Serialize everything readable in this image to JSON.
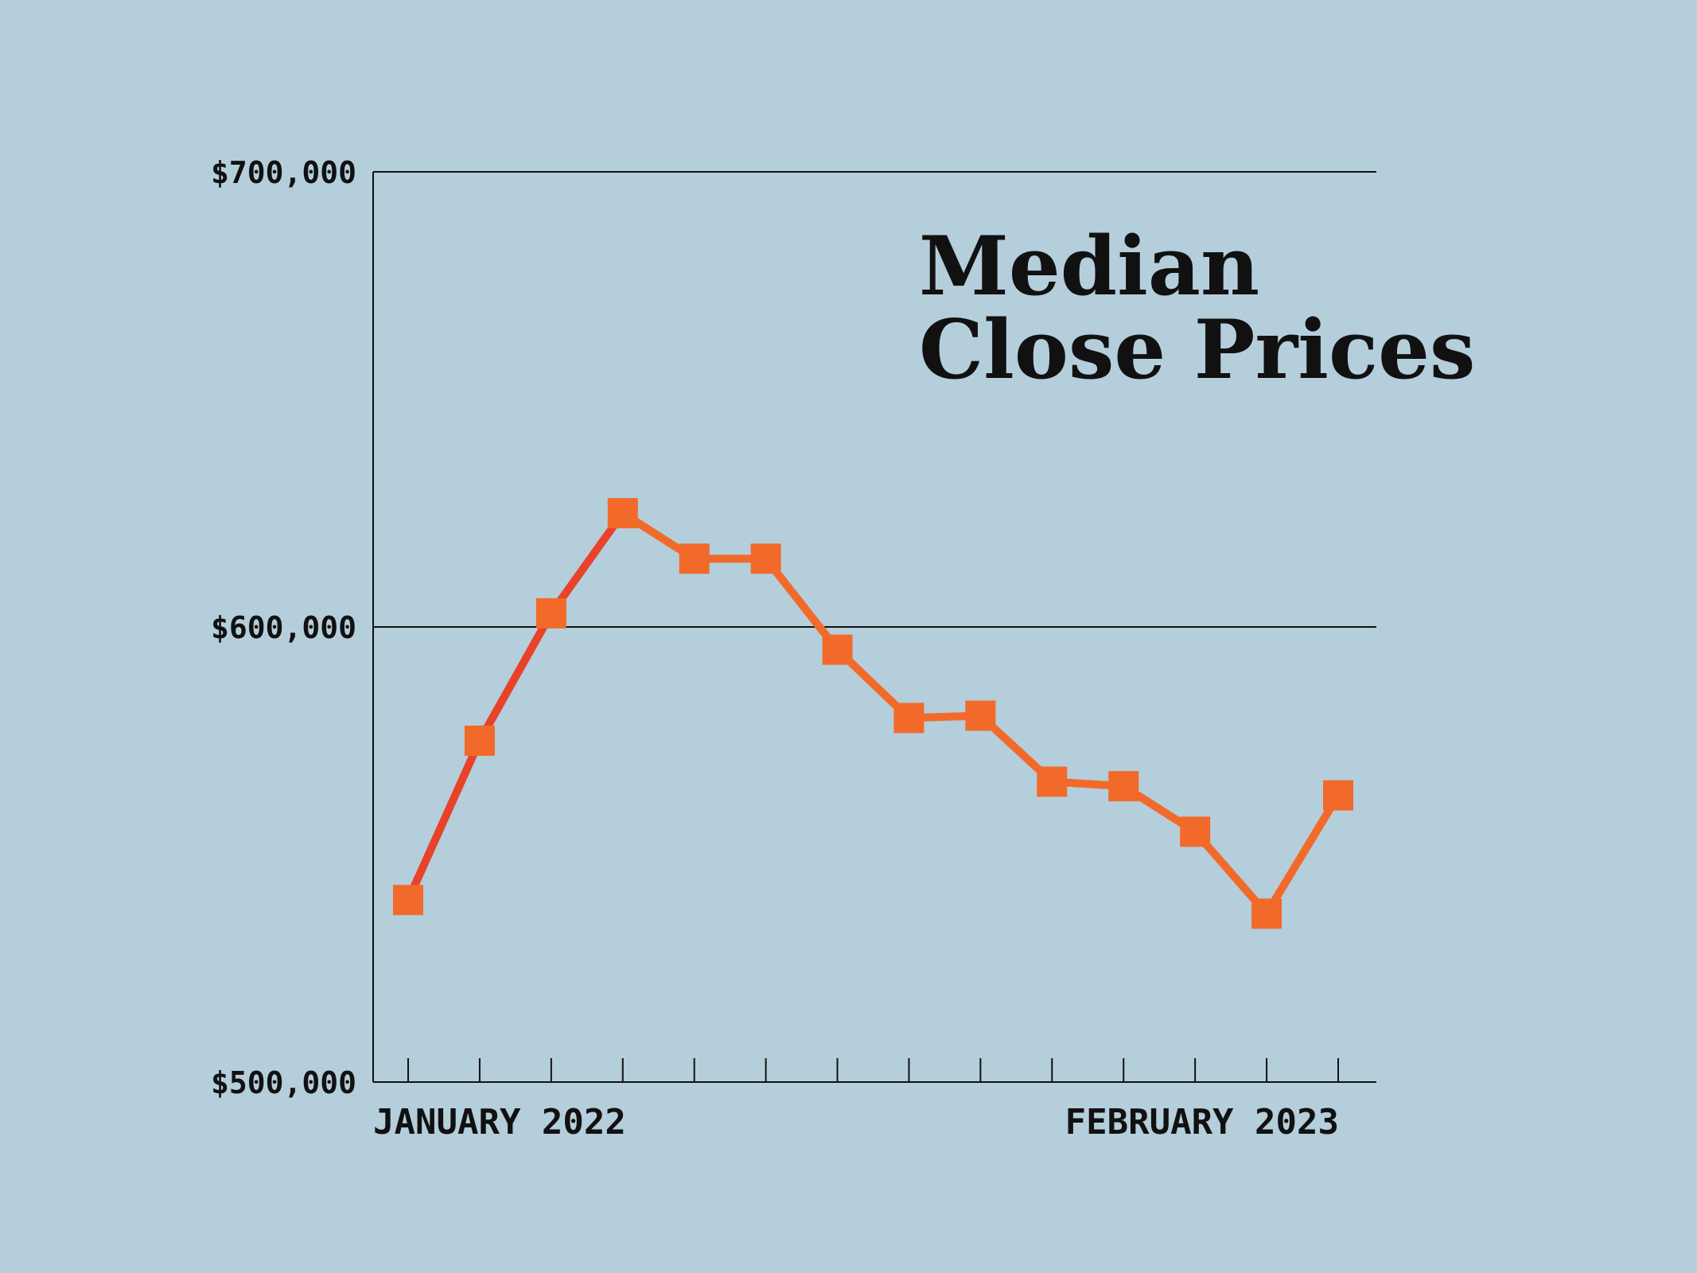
{
  "chart_data": {
    "type": "line",
    "title_lines": [
      "Median",
      "Close Prices"
    ],
    "xlabel": "",
    "ylabel": "",
    "x_start_label": "JANUARY 2022",
    "x_end_label": "FEBRUARY 2023",
    "y_tick_labels": [
      "$700,000",
      "$600,000",
      "$500,000"
    ],
    "y_ticks": [
      700000,
      600000,
      500000
    ],
    "ylim": [
      500000,
      700000
    ],
    "grid": true,
    "legend": "none",
    "line_color": "#f26a2a",
    "accent_color": "#e8432a",
    "x": [
      "2022-01",
      "2022-02",
      "2022-03",
      "2022-04",
      "2022-05",
      "2022-06",
      "2022-07",
      "2022-08",
      "2022-09",
      "2022-10",
      "2022-11",
      "2022-12",
      "2023-01",
      "2023-02"
    ],
    "series": [
      {
        "values": [
          540000,
          575000,
          603000,
          625000,
          615000,
          615000,
          595000,
          580000,
          580500,
          566000,
          565000,
          555000,
          537000,
          563000
        ]
      }
    ]
  }
}
